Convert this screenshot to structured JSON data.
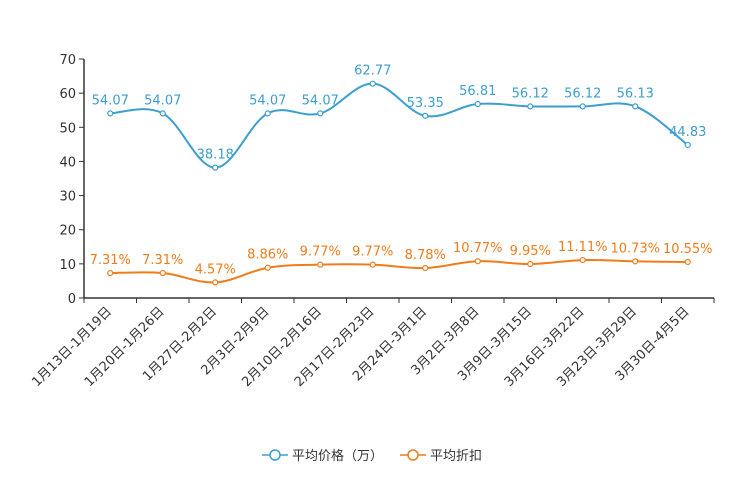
{
  "chart_data": {
    "type": "line",
    "categories": [
      "1月13日-1月19日",
      "1月20日-1月26日",
      "1月27日-2月2日",
      "2月3日-2月9日",
      "2月10日-2月16日",
      "2月17日-2月23日",
      "2月24日-3月1日",
      "3月2日-3月8日",
      "3月9日-3月15日",
      "3月16日-3月22日",
      "3月23日-3月29日",
      "3月30日-4月5日"
    ],
    "series": [
      {
        "name": "平均价格（万）",
        "color": "#3d9fcf",
        "values": [
          54.07,
          54.07,
          38.18,
          54.07,
          54.07,
          62.77,
          53.35,
          56.81,
          56.12,
          56.12,
          56.13,
          44.83
        ],
        "labels": [
          "54.07",
          "54.07",
          "38.18",
          "54.07",
          "54.07",
          "62.77",
          "53.35",
          "56.81",
          "56.12",
          "56.12",
          "56.13",
          "44.83"
        ]
      },
      {
        "name": "平均折扣",
        "color": "#f07c1c",
        "values": [
          7.31,
          7.31,
          4.57,
          8.86,
          9.77,
          9.77,
          8.78,
          10.77,
          9.95,
          11.11,
          10.73,
          10.55
        ],
        "labels": [
          "7.31%",
          "7.31%",
          "4.57%",
          "8.86%",
          "9.77%",
          "9.77%",
          "8.78%",
          "10.77%",
          "9.95%",
          "11.11%",
          "10.73%",
          "10.55%"
        ]
      }
    ],
    "ylim": [
      0,
      70
    ],
    "yticks": [
      "0",
      "10",
      "20",
      "30",
      "40",
      "50",
      "60",
      "70"
    ],
    "legend": "bottom-center",
    "grid": false
  }
}
